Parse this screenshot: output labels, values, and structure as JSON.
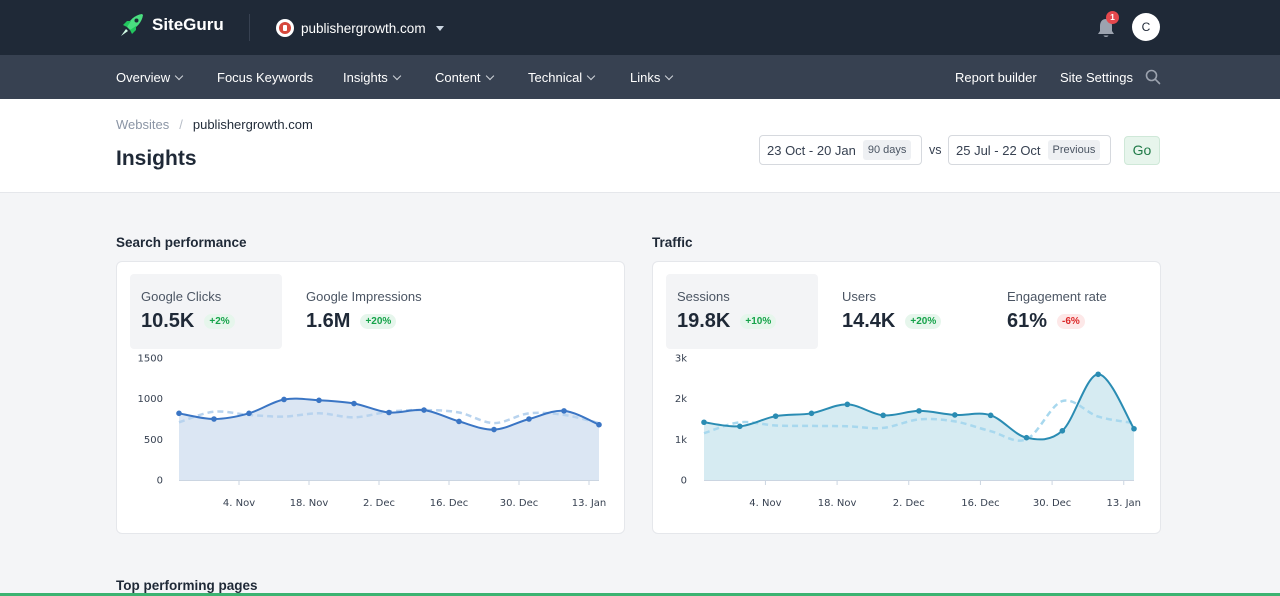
{
  "app": {
    "name": "SiteGuru",
    "site": "publishergrowth.com",
    "notifications_count": "1",
    "avatar_initial": "C"
  },
  "nav": {
    "left": [
      {
        "label": "Overview",
        "has_dropdown": true
      },
      {
        "label": "Focus Keywords",
        "has_dropdown": false
      },
      {
        "label": "Insights",
        "has_dropdown": true
      },
      {
        "label": "Content",
        "has_dropdown": true
      },
      {
        "label": "Technical",
        "has_dropdown": true
      },
      {
        "label": "Links",
        "has_dropdown": true
      }
    ],
    "right": [
      {
        "label": "Report builder"
      },
      {
        "label": "Site Settings"
      }
    ]
  },
  "breadcrumb": {
    "parent": "Websites",
    "separator": "/",
    "current": "publishergrowth.com"
  },
  "page": {
    "title": "Insights",
    "date_range": {
      "label": "23 Oct - 20 Jan",
      "tag": "90 days"
    },
    "vs_label": "vs",
    "compare_range": {
      "label": "25 Jul - 22 Oct",
      "tag": "Previous"
    },
    "go_label": "Go"
  },
  "search_performance": {
    "title": "Search performance",
    "metrics": [
      {
        "label": "Google Clicks",
        "value": "10.5K",
        "change": "+2%",
        "trend": "up",
        "active": true
      },
      {
        "label": "Google Impressions",
        "value": "1.6M",
        "change": "+20%",
        "trend": "up",
        "active": false
      }
    ]
  },
  "traffic": {
    "title": "Traffic",
    "metrics": [
      {
        "label": "Sessions",
        "value": "19.8K",
        "change": "+10%",
        "trend": "up",
        "active": true
      },
      {
        "label": "Users",
        "value": "14.4K",
        "change": "+20%",
        "trend": "up",
        "active": false
      },
      {
        "label": "Engagement rate",
        "value": "61%",
        "change": "-6%",
        "trend": "down",
        "active": false
      }
    ]
  },
  "chart_data": [
    {
      "type": "area",
      "ylim": [
        0,
        1500
      ],
      "yticks": [
        "0",
        "500",
        "1000",
        "1500"
      ],
      "xticks": [
        "4. Nov",
        "18. Nov",
        "2. Dec",
        "16. Dec",
        "30. Dec",
        "13. Jan"
      ],
      "x_day_first": 0,
      "x_tick_days": [
        12,
        26,
        40,
        54,
        68,
        82
      ],
      "x_day_last": 84,
      "color": "#3a75c4",
      "fill": "#dbe6f3",
      "previous_color": "#b8d3ee",
      "series": [
        {
          "values": [
            820,
            750,
            820,
            990,
            980,
            940,
            830,
            860,
            720,
            620,
            750,
            850,
            680
          ]
        },
        {
          "values": [
            710,
            840,
            800,
            780,
            820,
            770,
            840,
            860,
            830,
            700,
            820,
            800,
            700
          ]
        }
      ]
    },
    {
      "type": "area",
      "ylim": [
        0,
        3000
      ],
      "yticks": [
        "0",
        "1k",
        "2k",
        "3k"
      ],
      "xticks": [
        "4. Nov",
        "18. Nov",
        "2. Dec",
        "16. Dec",
        "30. Dec",
        "13. Jan"
      ],
      "x_day_first": 0,
      "x_tick_days": [
        12,
        26,
        40,
        54,
        68,
        82
      ],
      "x_day_last": 84,
      "color": "#2a8cb3",
      "fill": "#d6ebf2",
      "previous_color": "#a8d8ee",
      "series": [
        {
          "values": [
            1420,
            1320,
            1570,
            1640,
            1860,
            1590,
            1700,
            1600,
            1590,
            1040,
            1210,
            2600,
            1260
          ]
        },
        {
          "values": [
            1150,
            1420,
            1340,
            1330,
            1320,
            1280,
            1490,
            1440,
            1200,
            1000,
            1940,
            1560,
            1400
          ]
        }
      ]
    }
  ],
  "bottom": {
    "title": "Top performing pages"
  }
}
